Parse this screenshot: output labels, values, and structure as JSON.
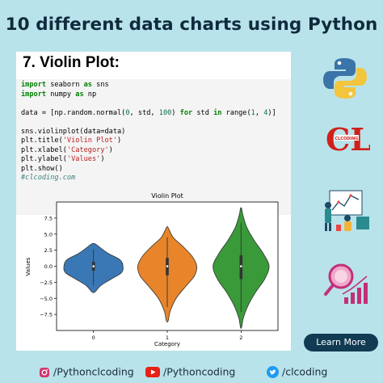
{
  "header": {
    "title": "10 different data charts using Python"
  },
  "card": {
    "heading": "7. Violin Plot:",
    "code": [
      [
        [
          "kw",
          "import"
        ],
        [
          "t",
          " seaborn "
        ],
        [
          "kw",
          "as"
        ],
        [
          "t",
          " sns"
        ]
      ],
      [
        [
          "kw",
          "import"
        ],
        [
          "t",
          " numpy "
        ],
        [
          "kw",
          "as"
        ],
        [
          "t",
          " np"
        ]
      ],
      [
        [
          "t",
          ""
        ]
      ],
      [
        [
          "t",
          "data = [np.random.normal("
        ],
        [
          "num",
          "0"
        ],
        [
          "t",
          ", std, "
        ],
        [
          "num",
          "100"
        ],
        [
          "t",
          ") "
        ],
        [
          "kw",
          "for"
        ],
        [
          "t",
          " std "
        ],
        [
          "kw",
          "in"
        ],
        [
          "t",
          " range("
        ],
        [
          "num",
          "1"
        ],
        [
          "t",
          ", "
        ],
        [
          "num",
          "4"
        ],
        [
          "t",
          ")]"
        ]
      ],
      [
        [
          "t",
          ""
        ]
      ],
      [
        [
          "t",
          "sns.violinplot(data=data)"
        ]
      ],
      [
        [
          "t",
          "plt.title("
        ],
        [
          "str",
          "'Violin Plot'"
        ],
        [
          "t",
          ")"
        ]
      ],
      [
        [
          "t",
          "plt.xlabel("
        ],
        [
          "str",
          "'Category'"
        ],
        [
          "t",
          ")"
        ]
      ],
      [
        [
          "t",
          "plt.ylabel("
        ],
        [
          "str",
          "'Values'"
        ],
        [
          "t",
          ")"
        ]
      ],
      [
        [
          "t",
          "plt.show()"
        ]
      ],
      [
        [
          "cm",
          "#clcoding.com"
        ]
      ]
    ]
  },
  "chart_data": {
    "type": "violin",
    "title": "Violin Plot",
    "xlabel": "Category",
    "ylabel": "Values",
    "categories": [
      "0",
      "1",
      "2"
    ],
    "ylim": [
      -10,
      10
    ],
    "yticks": [
      -7.5,
      -5.0,
      -2.5,
      0.0,
      2.5,
      5.0,
      7.5
    ],
    "ytick_labels": [
      "−7.5",
      "−5.0",
      "−2.5",
      "0.0",
      "2.5",
      "5.0",
      "7.5"
    ],
    "colors": [
      "#3a78b5",
      "#e8852a",
      "#3a9a3a"
    ],
    "violins": [
      {
        "category": "0",
        "min": -4.0,
        "max": 3.5,
        "q1": -0.7,
        "median": 0.0,
        "q3": 0.7,
        "profile": [
          [
            -4.0,
            0.05
          ],
          [
            -3.0,
            0.25
          ],
          [
            -2.0,
            0.6
          ],
          [
            -1.0,
            0.95
          ],
          [
            0.0,
            1.0
          ],
          [
            1.0,
            0.9
          ],
          [
            2.0,
            0.5
          ],
          [
            3.0,
            0.2
          ],
          [
            3.5,
            0.05
          ]
        ]
      },
      {
        "category": "1",
        "min": -8.5,
        "max": 6.0,
        "q1": -1.4,
        "median": 0.0,
        "q3": 1.3,
        "profile": [
          [
            -8.5,
            0.03
          ],
          [
            -7.0,
            0.1
          ],
          [
            -5.0,
            0.3
          ],
          [
            -3.0,
            0.65
          ],
          [
            -1.5,
            0.92
          ],
          [
            0.0,
            1.0
          ],
          [
            1.5,
            0.85
          ],
          [
            3.0,
            0.55
          ],
          [
            4.5,
            0.2
          ],
          [
            6.0,
            0.03
          ]
        ]
      },
      {
        "category": "2",
        "min": -9.5,
        "max": 9.0,
        "q1": -2.0,
        "median": 0.0,
        "q3": 1.7,
        "profile": [
          [
            -9.5,
            0.02
          ],
          [
            -8.0,
            0.08
          ],
          [
            -6.0,
            0.25
          ],
          [
            -4.0,
            0.5
          ],
          [
            -2.0,
            0.8
          ],
          [
            0.0,
            0.95
          ],
          [
            2.0,
            0.75
          ],
          [
            4.0,
            0.45
          ],
          [
            6.0,
            0.2
          ],
          [
            8.0,
            0.06
          ],
          [
            9.0,
            0.02
          ]
        ]
      }
    ]
  },
  "cta": {
    "label": "Learn More"
  },
  "footer": {
    "instagram": "/Pythonclcoding",
    "youtube": "/Pythoncoding",
    "twitter": "/clcoding"
  },
  "logo": {
    "text": "CL",
    "subtext": "CLCODING"
  },
  "colors": {
    "background": "#b9e3ea",
    "title": "#0f2a3d",
    "button": "#103b52",
    "logo_red": "#d0201b"
  }
}
